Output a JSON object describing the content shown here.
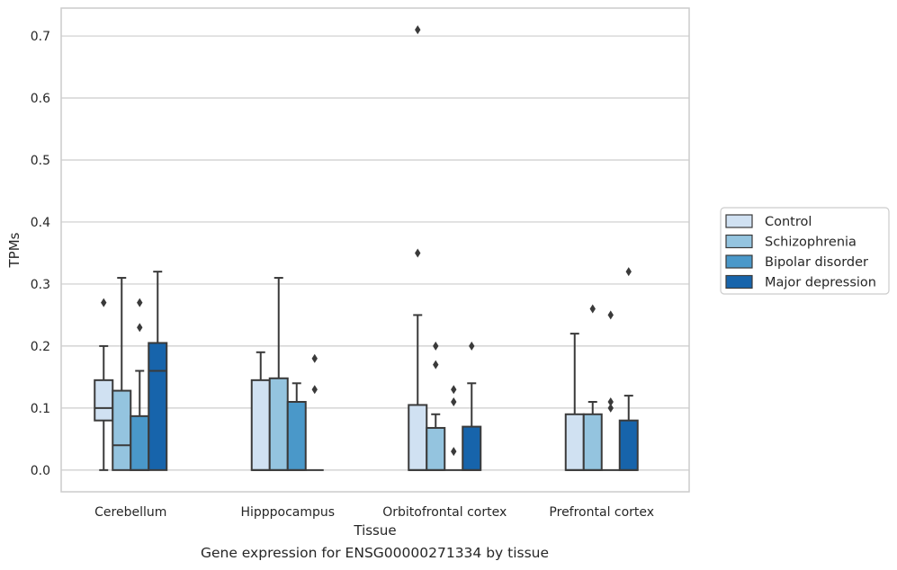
{
  "caption": "Gene expression for ENSG00000271334 by tissue",
  "chart_data": {
    "type": "box",
    "xlabel": "Tissue",
    "ylabel": "TPMs",
    "ylim": [
      -0.035,
      0.745
    ],
    "yticks": [
      0.0,
      0.1,
      0.2,
      0.3,
      0.4,
      0.5,
      0.6,
      0.7
    ],
    "grid": true,
    "legend_position": "outside-right",
    "categories": [
      "Cerebellum",
      "Hipppocampus",
      "Orbitofrontal cortex",
      "Prefrontal cortex"
    ],
    "series": [
      {
        "name": "Control",
        "color": "#d0e1f2",
        "boxes": [
          {
            "q1": 0.08,
            "median": 0.1,
            "q3": 0.145,
            "whisker_low": 0.0,
            "whisker_high": 0.2,
            "outliers": [
              0.27
            ]
          },
          {
            "q1": 0.0,
            "median": 0.0,
            "q3": 0.145,
            "whisker_low": 0.0,
            "whisker_high": 0.19,
            "outliers": []
          },
          {
            "q1": 0.0,
            "median": 0.0,
            "q3": 0.105,
            "whisker_low": 0.0,
            "whisker_high": 0.25,
            "outliers": [
              0.35,
              0.71
            ]
          },
          {
            "q1": 0.0,
            "median": 0.0,
            "q3": 0.09,
            "whisker_low": 0.0,
            "whisker_high": 0.22,
            "outliers": []
          }
        ]
      },
      {
        "name": "Schizophrenia",
        "color": "#94c4df",
        "boxes": [
          {
            "q1": 0.0,
            "median": 0.04,
            "q3": 0.128,
            "whisker_low": 0.0,
            "whisker_high": 0.31,
            "outliers": []
          },
          {
            "q1": 0.0,
            "median": 0.0,
            "q3": 0.148,
            "whisker_low": 0.0,
            "whisker_high": 0.31,
            "outliers": []
          },
          {
            "q1": 0.0,
            "median": 0.0,
            "q3": 0.068,
            "whisker_low": 0.0,
            "whisker_high": 0.09,
            "outliers": [
              0.17,
              0.2
            ]
          },
          {
            "q1": 0.0,
            "median": 0.0,
            "q3": 0.09,
            "whisker_low": 0.0,
            "whisker_high": 0.11,
            "outliers": [
              0.26
            ]
          }
        ]
      },
      {
        "name": "Bipolar disorder",
        "color": "#4a98c9",
        "boxes": [
          {
            "q1": 0.0,
            "median": 0.0,
            "q3": 0.087,
            "whisker_low": 0.0,
            "whisker_high": 0.16,
            "outliers": [
              0.23,
              0.27
            ]
          },
          {
            "q1": 0.0,
            "median": 0.0,
            "q3": 0.11,
            "whisker_low": 0.0,
            "whisker_high": 0.14,
            "outliers": []
          },
          {
            "q1": 0.0,
            "median": 0.0,
            "q3": 0.0,
            "whisker_low": 0.0,
            "whisker_high": 0.0,
            "outliers": [
              0.03,
              0.11,
              0.13
            ]
          },
          {
            "q1": 0.0,
            "median": 0.0,
            "q3": 0.0,
            "whisker_low": 0.0,
            "whisker_high": 0.0,
            "outliers": [
              0.1,
              0.11,
              0.25
            ]
          }
        ]
      },
      {
        "name": "Major depression",
        "color": "#1764ab",
        "boxes": [
          {
            "q1": 0.0,
            "median": 0.16,
            "q3": 0.205,
            "whisker_low": 0.0,
            "whisker_high": 0.32,
            "outliers": []
          },
          {
            "q1": 0.0,
            "median": 0.0,
            "q3": 0.0,
            "whisker_low": 0.0,
            "whisker_high": 0.0,
            "outliers": [
              0.13,
              0.18
            ]
          },
          {
            "q1": 0.0,
            "median": 0.0,
            "q3": 0.07,
            "whisker_low": 0.0,
            "whisker_high": 0.14,
            "outliers": [
              0.2
            ]
          },
          {
            "q1": 0.0,
            "median": 0.0,
            "q3": 0.08,
            "whisker_low": 0.0,
            "whisker_high": 0.12,
            "outliers": [
              0.32
            ]
          }
        ]
      }
    ]
  }
}
